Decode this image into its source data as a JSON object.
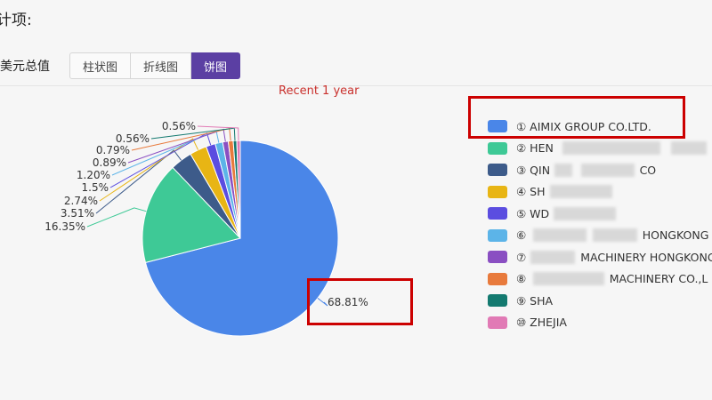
{
  "page": {
    "section_title": "计项:",
    "metric_label": "美元总值",
    "chart_type_buttons": [
      {
        "label": "柱状图",
        "active": false
      },
      {
        "label": "折线图",
        "active": false
      },
      {
        "label": "饼图",
        "active": true
      }
    ]
  },
  "chart_data": {
    "type": "pie",
    "title": "Recent 1 year",
    "legend_position": "right",
    "slices": [
      {
        "legend": "① AIMIX GROUP CO.LTD.",
        "value": 68.81,
        "label": "68.81%",
        "color": "#4a86e8"
      },
      {
        "legend": "② HEN",
        "legend_suffix": "CO.,L",
        "value": 16.35,
        "label": "16.35%",
        "color": "#3ec996"
      },
      {
        "legend": "③ QIN",
        "legend_suffix": "CO",
        "value": 3.51,
        "label": "3.51%",
        "color": "#3d5b8a"
      },
      {
        "legend": "④ SH",
        "legend_suffix": "",
        "value": 2.74,
        "label": "2.74%",
        "color": "#e8b514"
      },
      {
        "legend": "⑤ WD",
        "legend_suffix": "",
        "value": 1.5,
        "label": "1.5%",
        "color": "#5b4de0"
      },
      {
        "legend": "⑥",
        "legend_suffix": "HONGKONG",
        "value": 1.2,
        "label": "1.20%",
        "color": "#5cb4e8"
      },
      {
        "legend": "⑦",
        "legend_suffix": "MACHINERY HONGKONG",
        "value": 0.89,
        "label": "0.89%",
        "color": "#8a4fc2"
      },
      {
        "legend": "⑧",
        "legend_suffix": "MACHINERY CO.,L",
        "value": 0.79,
        "label": "0.79%",
        "color": "#e87a3c"
      },
      {
        "legend": "⑨ SHA",
        "legend_suffix": "",
        "value": 0.56,
        "label": "0.56%",
        "color": "#147a70"
      },
      {
        "legend": "⑩ ZHEJIA",
        "legend_suffix": "",
        "value": 0.56,
        "label": "0.56%",
        "color": "#e17ab5"
      }
    ]
  }
}
